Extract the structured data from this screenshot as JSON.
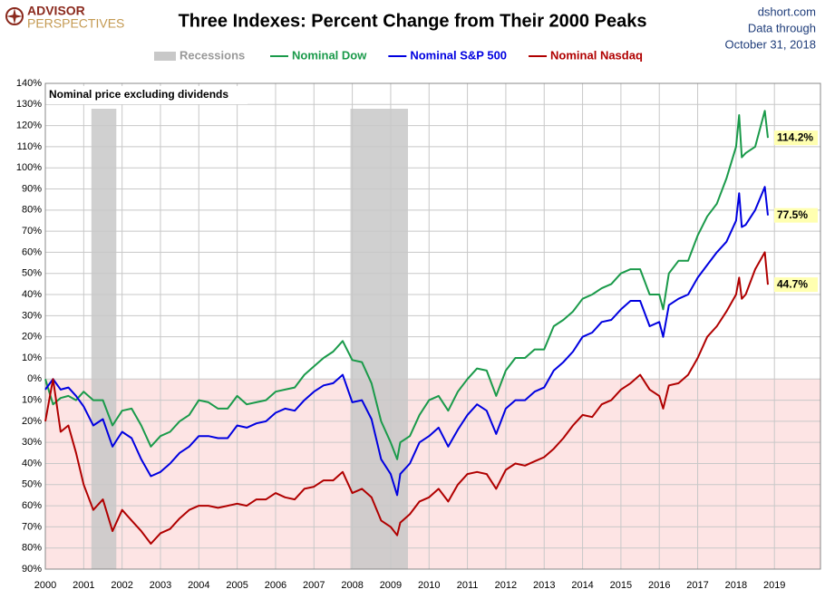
{
  "brand": {
    "line1": "ADVISOR",
    "line2": "PERSPECTIVES"
  },
  "source": {
    "site": "dshort.com",
    "line2": "Data through",
    "line3": "October 31, 2018"
  },
  "chart_data": {
    "type": "line",
    "title": "Three Indexes: Percent Change from Their 2000 Peaks",
    "note": "Nominal price excluding dividends",
    "recession_label": "Recessions",
    "recession_color": "#c8c8c8",
    "recessions": [
      {
        "start": 2001.2,
        "end": 2001.85
      },
      {
        "start": 2007.95,
        "end": 2009.45
      }
    ],
    "x": [
      2000,
      2000.2,
      2000.4,
      2000.6,
      2000.8,
      2001,
      2001.25,
      2001.5,
      2001.75,
      2002,
      2002.25,
      2002.5,
      2002.75,
      2003,
      2003.25,
      2003.5,
      2003.75,
      2004,
      2004.25,
      2004.5,
      2004.75,
      2005,
      2005.25,
      2005.5,
      2005.75,
      2006,
      2006.25,
      2006.5,
      2006.75,
      2007,
      2007.25,
      2007.5,
      2007.75,
      2008,
      2008.25,
      2008.5,
      2008.75,
      2009,
      2009.17,
      2009.25,
      2009.5,
      2009.75,
      2010,
      2010.25,
      2010.5,
      2010.75,
      2011,
      2011.25,
      2011.5,
      2011.75,
      2012,
      2012.25,
      2012.5,
      2012.75,
      2013,
      2013.25,
      2013.5,
      2013.75,
      2014,
      2014.25,
      2014.5,
      2014.75,
      2015,
      2015.25,
      2015.5,
      2015.75,
      2016,
      2016.1,
      2016.25,
      2016.5,
      2016.75,
      2017,
      2017.25,
      2017.5,
      2017.75,
      2018,
      2018.08,
      2018.15,
      2018.25,
      2018.5,
      2018.75,
      2018.83
    ],
    "series": [
      {
        "name": "Nominal Dow",
        "color": "#1a9a4a",
        "values": [
          0,
          -12,
          -9,
          -8,
          -10,
          -6,
          -10,
          -10,
          -22,
          -15,
          -14,
          -22,
          -32,
          -27,
          -25,
          -20,
          -17,
          -10,
          -11,
          -14,
          -14,
          -8,
          -12,
          -11,
          -10,
          -6,
          -5,
          -4,
          2,
          6,
          10,
          13,
          18,
          9,
          8,
          -2,
          -20,
          -30,
          -38,
          -30,
          -27,
          -17,
          -10,
          -8,
          -15,
          -6,
          0,
          5,
          4,
          -8,
          4,
          10,
          10,
          14,
          14,
          25,
          28,
          32,
          38,
          40,
          43,
          45,
          50,
          52,
          52,
          40,
          40,
          33,
          50,
          56,
          56,
          68,
          77,
          83,
          95,
          110,
          125,
          105,
          107,
          110,
          127,
          114.2
        ]
      },
      {
        "name": "Nominal S&P 500",
        "color": "#0000e0",
        "values": [
          -5,
          0,
          -5,
          -4,
          -8,
          -13,
          -22,
          -19,
          -32,
          -25,
          -28,
          -38,
          -46,
          -44,
          -40,
          -35,
          -32,
          -27,
          -27,
          -28,
          -28,
          -22,
          -23,
          -21,
          -20,
          -16,
          -14,
          -15,
          -10,
          -6,
          -3,
          -2,
          2,
          -11,
          -10,
          -19,
          -38,
          -45,
          -55,
          -45,
          -40,
          -30,
          -27,
          -23,
          -32,
          -24,
          -17,
          -12,
          -15,
          -26,
          -14,
          -10,
          -10,
          -6,
          -4,
          4,
          8,
          13,
          20,
          22,
          27,
          28,
          33,
          37,
          37,
          25,
          27,
          20,
          35,
          38,
          40,
          48,
          54,
          60,
          65,
          75,
          88,
          72,
          73,
          80,
          91,
          77.5
        ]
      },
      {
        "name": "Nominal Nasdaq",
        "color": "#b00000",
        "values": [
          -20,
          0,
          -25,
          -22,
          -35,
          -50,
          -62,
          -57,
          -72,
          -62,
          -67,
          -72,
          -78,
          -73,
          -71,
          -66,
          -62,
          -60,
          -60,
          -61,
          -60,
          -59,
          -60,
          -57,
          -57,
          -54,
          -56,
          -57,
          -52,
          -51,
          -48,
          -48,
          -44,
          -54,
          -52,
          -56,
          -67,
          -70,
          -74,
          -68,
          -64,
          -58,
          -56,
          -52,
          -58,
          -50,
          -45,
          -44,
          -45,
          -52,
          -43,
          -40,
          -41,
          -39,
          -37,
          -33,
          -28,
          -22,
          -17,
          -18,
          -12,
          -10,
          -5,
          -2,
          2,
          -5,
          -8,
          -14,
          -3,
          -2,
          2,
          10,
          20,
          25,
          32,
          40,
          48,
          38,
          40,
          52,
          60,
          44.7
        ]
      }
    ],
    "end_labels": [
      {
        "value": 114.2,
        "label": "114.2%"
      },
      {
        "value": 77.5,
        "label": "77.5%"
      },
      {
        "value": 44.7,
        "label": "44.7%"
      }
    ],
    "xlim": [
      2000,
      2020.2
    ],
    "xticks": [
      2000,
      2001,
      2002,
      2003,
      2004,
      2005,
      2006,
      2007,
      2008,
      2009,
      2010,
      2011,
      2012,
      2013,
      2014,
      2015,
      2016,
      2017,
      2018,
      2019
    ],
    "ylim": [
      -90,
      140
    ],
    "yticks": [
      {
        "value": 140,
        "label": "140%"
      },
      {
        "value": 130,
        "label": "130%"
      },
      {
        "value": 120,
        "label": "120%"
      },
      {
        "value": 110,
        "label": "110%"
      },
      {
        "value": 100,
        "label": "100%"
      },
      {
        "value": 90,
        "label": "90%"
      },
      {
        "value": 80,
        "label": "80%"
      },
      {
        "value": 70,
        "label": "70%"
      },
      {
        "value": 60,
        "label": "60%"
      },
      {
        "value": 50,
        "label": "50%"
      },
      {
        "value": 40,
        "label": "40%"
      },
      {
        "value": 30,
        "label": "30%"
      },
      {
        "value": 20,
        "label": "20%"
      },
      {
        "value": 10,
        "label": "10%"
      },
      {
        "value": 0,
        "label": "0%"
      },
      {
        "value": -10,
        "label": "10%"
      },
      {
        "value": -20,
        "label": "20%"
      },
      {
        "value": -30,
        "label": "30%"
      },
      {
        "value": -40,
        "label": "40%"
      },
      {
        "value": -50,
        "label": "50%"
      },
      {
        "value": -60,
        "label": "60%"
      },
      {
        "value": -70,
        "label": "70%"
      },
      {
        "value": -80,
        "label": "80%"
      },
      {
        "value": -90,
        "label": "90%"
      }
    ],
    "grid": true
  }
}
